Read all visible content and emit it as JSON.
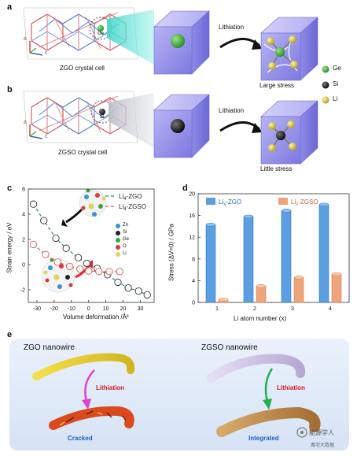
{
  "panels": {
    "a": {
      "label": "a",
      "axis_a": "a",
      "axis_c": "c",
      "crystal_caption": "ZGO crystal cell",
      "atom_label": "Ge",
      "arrow_label": "Lithiation",
      "result_label": "Large stress"
    },
    "b": {
      "label": "b",
      "axis_a": "a",
      "axis_c": "c",
      "crystal_caption": "ZGSO crystal cell",
      "atom_label": "Si",
      "arrow_label": "Lithiation",
      "result_label": "Little stress"
    },
    "legend_ab": [
      {
        "name": "Ge",
        "color": "#3aa535"
      },
      {
        "name": "Si",
        "color": "#111111"
      },
      {
        "name": "Li",
        "color": "#d6c24a"
      }
    ],
    "c": {
      "label": "c",
      "ylabel": "Strain energy / eV",
      "xlabel": "Volume deformation /Å³",
      "atom_legend": [
        {
          "name": "Zn",
          "color": "#3d8fd6"
        },
        {
          "name": "Si",
          "color": "#222222"
        },
        {
          "name": "Ge",
          "color": "#3aa535"
        },
        {
          "name": "O",
          "color": "#d93a3a"
        },
        {
          "name": "Li",
          "color": "#e0d35a"
        }
      ]
    },
    "d": {
      "label": "d",
      "ylabel": "Stress (ΔV=0) / GPa",
      "xlabel": "Li atom number (x)"
    },
    "e": {
      "label": "e",
      "left_title": "ZGO nanowire",
      "left_arrow": "Lithiation",
      "left_result": "Cracked",
      "right_title": "ZGSO nanowire",
      "right_arrow": "Lithiation",
      "right_result": "Integrated"
    },
    "watermark": "能源学人",
    "watermark_sub": "毒宅大数据"
  },
  "chart_data": [
    {
      "type": "scatter",
      "panel": "c",
      "xlim": [
        -35,
        38
      ],
      "ylim": [
        -3,
        6
      ],
      "x_ticks": [
        -30,
        -20,
        -10,
        0,
        10,
        20,
        30
      ],
      "y_ticks": [
        -2,
        0,
        2,
        4,
        6
      ],
      "series": [
        {
          "name": "Li4-ZGO",
          "name_base": "Li",
          "name_sub": "4",
          "name_suffix": "-ZGO",
          "color": "#2a8a7a",
          "x": [
            -32,
            -26,
            -19,
            -13,
            -6,
            -1,
            5,
            11,
            17,
            23,
            29,
            34
          ],
          "y": [
            4.8,
            3.5,
            2.1,
            1.3,
            0.55,
            0.1,
            -0.3,
            -0.8,
            -1.4,
            -1.85,
            -2.1,
            -2.4
          ]
        },
        {
          "name": "Li4-ZGSO",
          "name_base": "Li",
          "name_sub": "4",
          "name_suffix": "-ZGSO",
          "color": "#d65a5a",
          "x": [
            -32,
            -25,
            -18,
            -11,
            -5,
            0,
            6,
            12,
            18
          ],
          "y": [
            1.6,
            0.8,
            0.2,
            -0.15,
            -0.35,
            -0.5,
            -0.55,
            -0.55,
            -0.55
          ]
        }
      ]
    },
    {
      "type": "bar",
      "panel": "d",
      "categories": [
        "1",
        "2",
        "3",
        "4"
      ],
      "ylim": [
        0,
        20
      ],
      "y_ticks": [
        0,
        4,
        8,
        12,
        16,
        20
      ],
      "series": [
        {
          "name": "Lix-ZGO",
          "name_base": "Li",
          "name_sub": "x",
          "name_suffix": "-ZGO",
          "color": "#5b9fe0",
          "values": [
            14.3,
            15.8,
            16.9,
            18.0
          ]
        },
        {
          "name": "Lix-ZGSO",
          "name_base": "Li",
          "name_sub": "x",
          "name_suffix": "-ZGSO",
          "color": "#f0a47a",
          "values": [
            0.5,
            3.0,
            4.6,
            5.2
          ]
        }
      ]
    }
  ]
}
